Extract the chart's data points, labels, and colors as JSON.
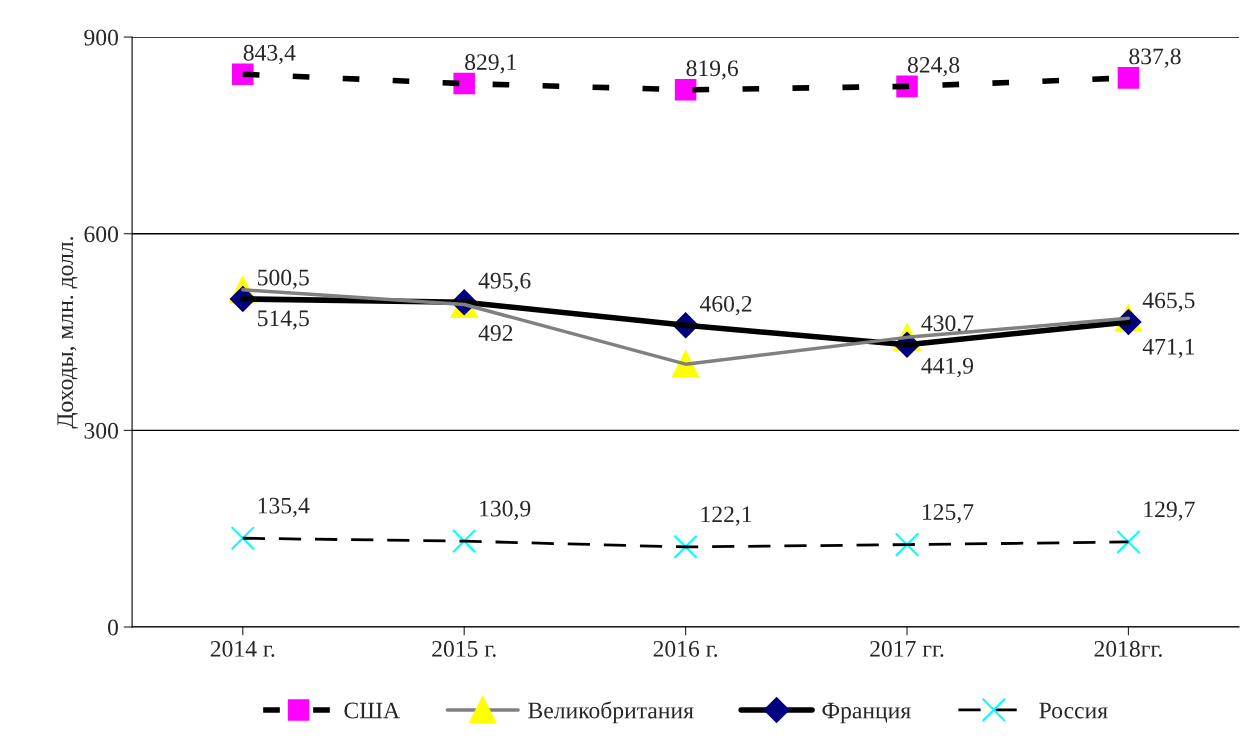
{
  "chart_data": {
    "type": "line",
    "ylabel": "Доходы, млн. долл.",
    "categories": [
      "2014 г.",
      "2015 г.",
      "2016 г.",
      "2017 гг.",
      "2018гг."
    ],
    "ylim": [
      0,
      900
    ],
    "yticks": [
      0,
      300,
      600,
      900
    ],
    "grid": "y",
    "legend": "bottom",
    "series": [
      {
        "name": "США",
        "color": "#ff00ff",
        "marker": "square",
        "line_style": "dotted",
        "values": [
          843.4,
          829.1,
          819.6,
          824.8,
          837.8
        ],
        "value_labels": [
          "843,4",
          "829,1",
          "819,6",
          "824,8",
          "837,8"
        ]
      },
      {
        "name": "Великобритания",
        "color": "#ffff00",
        "marker": "triangle",
        "line_style": "solid",
        "values": [
          514.5,
          492,
          401,
          441.9,
          471.1
        ],
        "value_labels": [
          "514,5",
          "492",
          null,
          "441,9",
          "471,1"
        ]
      },
      {
        "name": "Франция",
        "color": "#000080",
        "marker": "diamond",
        "line_style": "solid",
        "values": [
          500.5,
          495.6,
          460.2,
          430.7,
          465.5
        ],
        "value_labels": [
          "500,5",
          "495,6",
          "460,2",
          "430,7",
          "465,5"
        ]
      },
      {
        "name": "Россия",
        "color": "#00ffff",
        "marker": "cross",
        "line_style": "dashed",
        "values": [
          135.4,
          130.9,
          122.1,
          125.7,
          129.7
        ],
        "value_labels": [
          "135,4",
          "130,9",
          "122,1",
          "125,7",
          "129,7"
        ]
      }
    ]
  }
}
